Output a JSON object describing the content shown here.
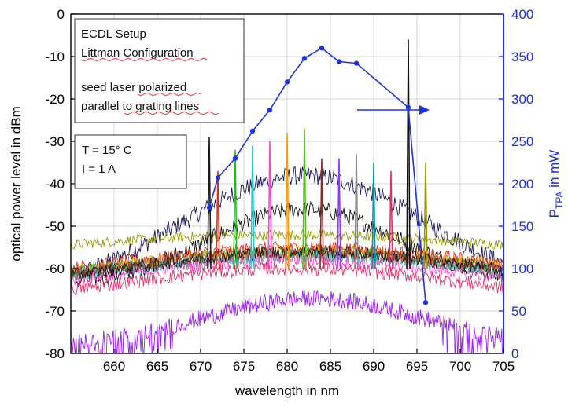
{
  "chart_data": {
    "type": "line",
    "title": "",
    "xlabel": "wavelength in nm",
    "ylabel": "optical power level in dBm",
    "y2label": {
      "main": "P",
      "sub": "TPA",
      "tail": " in mW"
    },
    "xlim": [
      655,
      705
    ],
    "ylim": [
      -80,
      0
    ],
    "y2lim": [
      0,
      400
    ],
    "xticks": [
      "660",
      "665",
      "670",
      "675",
      "680",
      "685",
      "690",
      "695",
      "700",
      "705"
    ],
    "yticks": [
      "0",
      "-10",
      "-20",
      "-30",
      "-40",
      "-50",
      "-60",
      "-70",
      "-80"
    ],
    "y2ticks": [
      "400",
      "350",
      "300",
      "250",
      "200",
      "150",
      "100",
      "50",
      "0"
    ],
    "grid": true,
    "colors": {
      "primary_axis": "#000000",
      "secondary_axis": "#1a2ee0",
      "grid": "#d4d4d4"
    },
    "annotations": {
      "box1": [
        "ECDL Setup",
        "Littman Configuration",
        "",
        "seed laser polarized",
        "parallel to grating lines"
      ],
      "box2": [
        "T = 15° C",
        "I = 1 A"
      ]
    },
    "tpa_series": {
      "axis": "right",
      "color": "#1a35e0",
      "x": [
        671,
        672,
        674,
        676,
        678,
        680,
        682,
        684,
        686,
        688,
        694,
        696
      ],
      "y": [
        172,
        207,
        230,
        262,
        287,
        320,
        348,
        360,
        344,
        342,
        290,
        60
      ]
    },
    "spectra": [
      {
        "color": "#1a1a1a",
        "peak_x": 671,
        "peak_y": -29
      },
      {
        "color": "#e0301e",
        "peak_x": 672,
        "peak_y": -37
      },
      {
        "color": "#22bb22",
        "peak_x": 674,
        "peak_y": -32
      },
      {
        "color": "#20c8d8",
        "peak_x": 676,
        "peak_y": -31
      },
      {
        "color": "#ff44cc",
        "peak_x": 678,
        "peak_y": -30
      },
      {
        "color": "#ff9900",
        "peak_x": 680,
        "peak_y": -28
      },
      {
        "color": "#55bb22",
        "peak_x": 682,
        "peak_y": -27
      },
      {
        "color": "#8b2a2a",
        "peak_x": 684,
        "peak_y": -34
      },
      {
        "color": "#9933ff",
        "peak_x": 686,
        "peak_y": -34
      },
      {
        "color": "#888888",
        "peak_x": 688,
        "peak_y": -33
      },
      {
        "color": "#0099aa",
        "peak_x": 690,
        "peak_y": -35
      },
      {
        "color": "#e0306a",
        "peak_x": 692,
        "peak_y": -37
      },
      {
        "color": "#111111",
        "peak_x": 694,
        "peak_y": -6
      },
      {
        "color": "#999900",
        "peak_x": 696,
        "peak_y": -35
      }
    ]
  }
}
